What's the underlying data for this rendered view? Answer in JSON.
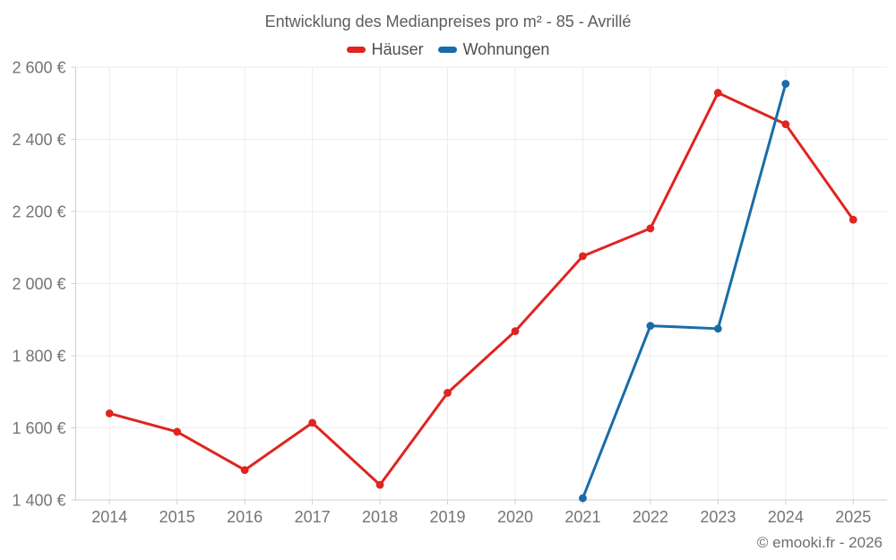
{
  "title": "Entwicklung des Medianpreises pro m² - 85 - Avrillé",
  "footer": "© emooki.fr - 2026",
  "colors": {
    "haeuser": "#e02420",
    "wohnungen": "#1a6ca8",
    "gridline": "#ececec",
    "axis": "#cfcfcf",
    "tick_label": "#757575",
    "title_text": "#5c5c5c"
  },
  "chart_data": {
    "type": "line",
    "title": "Entwicklung des Medianpreises pro m² - 85 - Avrillé",
    "categories": [
      "2014",
      "2015",
      "2016",
      "2017",
      "2018",
      "2019",
      "2020",
      "2021",
      "2022",
      "2023",
      "2024",
      "2025"
    ],
    "series": [
      {
        "name": "Häuser",
        "color": "#e02420",
        "values": [
          1640,
          1589,
          1483,
          1614,
          1442,
          1697,
          1868,
          2076,
          2153,
          2529,
          2442,
          2177
        ]
      },
      {
        "name": "Wohnungen",
        "color": "#1a6ca8",
        "values": [
          null,
          null,
          null,
          null,
          null,
          null,
          null,
          1405,
          1883,
          1875,
          2554,
          null
        ]
      }
    ],
    "xlabel": "",
    "ylabel": "",
    "ylim": [
      1400,
      2600
    ],
    "yticks": [
      1400,
      1600,
      1800,
      2000,
      2200,
      2400,
      2600
    ],
    "ytick_labels": [
      "1 400 €",
      "1 600 €",
      "1 800 €",
      "2 000 €",
      "2 200 €",
      "2 400 €",
      "2 600 €"
    ],
    "grid": true,
    "legend_position": "top"
  }
}
